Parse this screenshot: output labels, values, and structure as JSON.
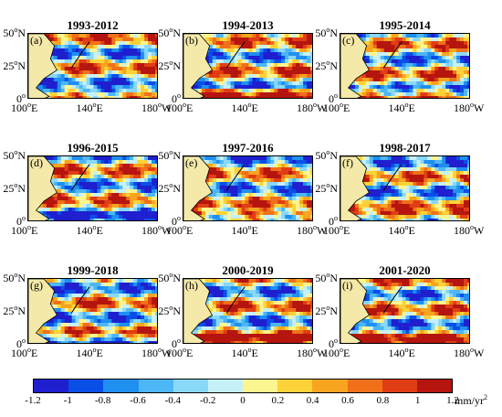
{
  "panels": [
    {
      "title": "1993-2012",
      "letter": "(a)"
    },
    {
      "title": "1994-2013",
      "letter": "(b)"
    },
    {
      "title": "1995-2014",
      "letter": "(c)"
    },
    {
      "title": "1996-2015",
      "letter": "(d)"
    },
    {
      "title": "1997-2016",
      "letter": "(e)"
    },
    {
      "title": "1998-2017",
      "letter": "(f)"
    },
    {
      "title": "1999-2018",
      "letter": "(g)"
    },
    {
      "title": "2000-2019",
      "letter": "(h)"
    },
    {
      "title": "2001-2020",
      "letter": "(i)"
    }
  ],
  "axes": {
    "y_ticks": [
      {
        "v": "50",
        "d": "o",
        "h": "N"
      },
      {
        "v": "25",
        "d": "o",
        "h": "N"
      },
      {
        "v": "0",
        "d": "o",
        "h": ""
      }
    ],
    "x_ticks": [
      {
        "v": "100",
        "d": "o",
        "h": "E"
      },
      {
        "v": "140",
        "d": "o",
        "h": "E"
      },
      {
        "v": "180",
        "d": "o",
        "h": "W"
      }
    ]
  },
  "colorbar": {
    "ticks": [
      "-1.2",
      "-1",
      "-0.8",
      "-0.6",
      "-0.4",
      "-0.2",
      "0",
      "0.2",
      "0.4",
      "0.6",
      "0.8",
      "1",
      "1.2"
    ],
    "unit_base": "mm/yr",
    "unit_exp": "2",
    "colors": [
      "#1f1fcf",
      "#0a4ee8",
      "#1f8ff0",
      "#4db6f5",
      "#89d8f7",
      "#c6f0f7",
      "#fdf58f",
      "#fcd238",
      "#f8a41e",
      "#f0701a",
      "#e13d14",
      "#b5150e"
    ]
  }
}
